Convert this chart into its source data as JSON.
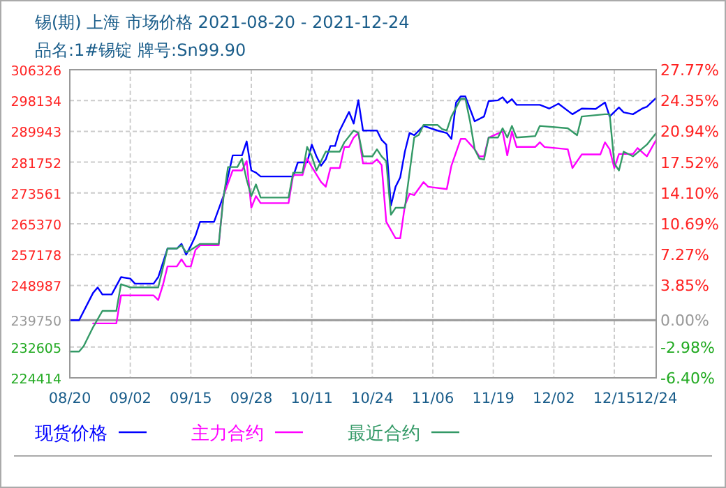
{
  "chart_data": {
    "type": "line",
    "title": "锡(期) 上海 市场价格 2021-08-20 - 2021-12-24",
    "subtitle": "品名:1#锡锭 牌号:Sn99.90",
    "xlim": [
      "2021-08-20",
      "2021-12-24"
    ],
    "xticks": [
      {
        "value": "2021-08-20",
        "label": "08/20"
      },
      {
        "value": "2021-09-02",
        "label": "09/02"
      },
      {
        "value": "2021-09-15",
        "label": "09/15"
      },
      {
        "value": "2021-09-28",
        "label": "09/28"
      },
      {
        "value": "2021-10-11",
        "label": "10/11"
      },
      {
        "value": "2021-10-24",
        "label": "10/24"
      },
      {
        "value": "2021-11-06",
        "label": "11/06"
      },
      {
        "value": "2021-11-19",
        "label": "11/19"
      },
      {
        "value": "2021-12-02",
        "label": "12/02"
      },
      {
        "value": "2021-12-15",
        "label": "12/15"
      },
      {
        "value": "2021-12-24",
        "label": "12/24"
      }
    ],
    "ylim": [
      224414,
      306326
    ],
    "yticks": [
      224414,
      232605,
      239750,
      248987,
      257178,
      265370,
      273561,
      281752,
      289943,
      298134,
      306326
    ],
    "y2lim": [
      -6.4,
      27.77
    ],
    "y2ticks": [
      {
        "value": -6.4,
        "label": "-6.40%"
      },
      {
        "value": -2.98,
        "label": "-2.98%"
      },
      {
        "value": 0,
        "label": "0.00%"
      },
      {
        "value": 3.85,
        "label": "3.85%"
      },
      {
        "value": 7.27,
        "label": "7.27%"
      },
      {
        "value": 10.69,
        "label": "10.69%"
      },
      {
        "value": 14.1,
        "label": "14.10%"
      },
      {
        "value": 17.52,
        "label": "17.52%"
      },
      {
        "value": 20.94,
        "label": "20.94%"
      },
      {
        "value": 24.35,
        "label": "24.35%"
      },
      {
        "value": 27.77,
        "label": "27.77%"
      }
    ],
    "ref_lines": [
      {
        "axis": "y2",
        "value": 0,
        "color": "#999999"
      }
    ],
    "grid": true,
    "legend": "bottom",
    "series": [
      {
        "name": "现货价格",
        "color": "#0000ff",
        "x": [
          "2021-08-20",
          "2021-08-22",
          "2021-08-25",
          "2021-08-26",
          "2021-08-27",
          "2021-08-29",
          "2021-08-31",
          "2021-09-02",
          "2021-09-03",
          "2021-09-07",
          "2021-09-08",
          "2021-09-10",
          "2021-09-12",
          "2021-09-13",
          "2021-09-14",
          "2021-09-15",
          "2021-09-16",
          "2021-09-17",
          "2021-09-20",
          "2021-09-22",
          "2021-09-23",
          "2021-09-24",
          "2021-09-26",
          "2021-09-27",
          "2021-09-28",
          "2021-09-29",
          "2021-09-30",
          "2021-10-07",
          "2021-10-08",
          "2021-10-10",
          "2021-10-11",
          "2021-10-12",
          "2021-10-13",
          "2021-10-14",
          "2021-10-15",
          "2021-10-16",
          "2021-10-17",
          "2021-10-19",
          "2021-10-20",
          "2021-10-21",
          "2021-10-22",
          "2021-10-25",
          "2021-10-26",
          "2021-10-27",
          "2021-10-28",
          "2021-10-29",
          "2021-10-30",
          "2021-10-31",
          "2021-11-01",
          "2021-11-02",
          "2021-11-04",
          "2021-11-07",
          "2021-11-09",
          "2021-11-10",
          "2021-11-11",
          "2021-11-12",
          "2021-11-13",
          "2021-11-15",
          "2021-11-17",
          "2021-11-18",
          "2021-11-20",
          "2021-11-21",
          "2021-11-22",
          "2021-11-23",
          "2021-11-24",
          "2021-11-29",
          "2021-12-01",
          "2021-12-03",
          "2021-12-06",
          "2021-12-08",
          "2021-12-11",
          "2021-12-13",
          "2021-12-14",
          "2021-12-16",
          "2021-12-17",
          "2021-12-19",
          "2021-12-21",
          "2021-12-22",
          "2021-12-24"
        ],
        "values": [
          239750,
          239750,
          247000,
          248450,
          246580,
          246580,
          251180,
          250800,
          249460,
          249460,
          251180,
          258790,
          258790,
          260025,
          257150,
          259500,
          262150,
          265890,
          265890,
          272720,
          277950,
          283550,
          283550,
          287280,
          279550,
          278960,
          277950,
          277950,
          281680,
          281680,
          286420,
          283290,
          280820,
          282500,
          286050,
          286050,
          290160,
          295120,
          292000,
          298220,
          290160,
          290160,
          287660,
          286420,
          270220,
          275220,
          277690,
          284550,
          289520,
          288900,
          291390,
          290160,
          289500,
          287920,
          297620,
          299230,
          299230,
          292620,
          293880,
          297990,
          298200,
          299000,
          297500,
          298500,
          296990,
          296990,
          296000,
          297300,
          294490,
          296000,
          295900,
          297620,
          293880,
          296300,
          295000,
          294490,
          296000,
          296500,
          298860
        ]
      },
      {
        "name": "主力合约",
        "color": "#ff00ff",
        "x": [
          "2021-08-25",
          "2021-08-30",
          "2021-08-31",
          "2021-09-07",
          "2021-09-08",
          "2021-09-09",
          "2021-09-10",
          "2021-09-12",
          "2021-09-13",
          "2021-09-14",
          "2021-09-15",
          "2021-09-16",
          "2021-09-17",
          "2021-09-21",
          "2021-09-22",
          "2021-09-24",
          "2021-09-26",
          "2021-09-27",
          "2021-09-28",
          "2021-09-29",
          "2021-09-30",
          "2021-10-06",
          "2021-10-07",
          "2021-10-09",
          "2021-10-10",
          "2021-10-11",
          "2021-10-13",
          "2021-10-14",
          "2021-10-15",
          "2021-10-17",
          "2021-10-18",
          "2021-10-19",
          "2021-10-20",
          "2021-10-21",
          "2021-10-22",
          "2021-10-24",
          "2021-10-25",
          "2021-10-26",
          "2021-10-27",
          "2021-10-29",
          "2021-10-30",
          "2021-10-31",
          "2021-11-01",
          "2021-11-02",
          "2021-11-04",
          "2021-11-05",
          "2021-11-09",
          "2021-11-10",
          "2021-11-12",
          "2021-11-13",
          "2021-11-15",
          "2021-11-16",
          "2021-11-17",
          "2021-11-18",
          "2021-11-21",
          "2021-11-22",
          "2021-11-23",
          "2021-11-24",
          "2021-11-28",
          "2021-11-29",
          "2021-11-30",
          "2021-12-05",
          "2021-12-06",
          "2021-12-08",
          "2021-12-12",
          "2021-12-13",
          "2021-12-14",
          "2021-12-15",
          "2021-12-16",
          "2021-12-19",
          "2021-12-20",
          "2021-12-22",
          "2021-12-23",
          "2021-12-24"
        ],
        "values": [
          238900,
          238900,
          246330,
          246330,
          245090,
          249080,
          254050,
          254050,
          255920,
          254050,
          254050,
          258420,
          259650,
          259650,
          272720,
          279550,
          279550,
          282050,
          269620,
          272720,
          270850,
          270850,
          278320,
          278320,
          282690,
          280500,
          276450,
          275220,
          280190,
          280190,
          285790,
          285790,
          288290,
          289520,
          281420,
          281420,
          282500,
          281000,
          265890,
          261520,
          261520,
          270220,
          273350,
          273000,
          276450,
          275220,
          274590,
          280820,
          287920,
          287920,
          285170,
          283290,
          283290,
          288290,
          289900,
          283550,
          289900,
          285790,
          285790,
          287030,
          285790,
          285170,
          280190,
          283800,
          283800,
          287030,
          285170,
          280190,
          283920,
          283920,
          285500,
          283290,
          285500,
          287660
        ]
      },
      {
        "name": "最近合约",
        "color": "#339966",
        "x": [
          "2021-08-20",
          "2021-08-22",
          "2021-08-23",
          "2021-08-25",
          "2021-08-27",
          "2021-08-30",
          "2021-08-31",
          "2021-09-02",
          "2021-09-08",
          "2021-09-10",
          "2021-09-12",
          "2021-09-13",
          "2021-09-14",
          "2021-09-15",
          "2021-09-17",
          "2021-09-21",
          "2021-09-22",
          "2021-09-23",
          "2021-09-25",
          "2021-09-26",
          "2021-09-27",
          "2021-09-28",
          "2021-09-29",
          "2021-09-30",
          "2021-10-06",
          "2021-10-07",
          "2021-10-09",
          "2021-10-10",
          "2021-10-11",
          "2021-10-12",
          "2021-10-14",
          "2021-10-17",
          "2021-10-18",
          "2021-10-20",
          "2021-10-21",
          "2021-10-22",
          "2021-10-24",
          "2021-10-25",
          "2021-10-26",
          "2021-10-27",
          "2021-10-28",
          "2021-10-29",
          "2021-10-31",
          "2021-11-01",
          "2021-11-02",
          "2021-11-03",
          "2021-11-04",
          "2021-11-07",
          "2021-11-08",
          "2021-11-09",
          "2021-11-10",
          "2021-11-12",
          "2021-11-13",
          "2021-11-14",
          "2021-11-15",
          "2021-11-16",
          "2021-11-17",
          "2021-11-18",
          "2021-11-20",
          "2021-11-21",
          "2021-11-22",
          "2021-11-23",
          "2021-11-24",
          "2021-11-28",
          "2021-11-29",
          "2021-12-05",
          "2021-12-07",
          "2021-12-08",
          "2021-12-13",
          "2021-12-14",
          "2021-12-15",
          "2021-12-16",
          "2021-12-17",
          "2021-12-19",
          "2021-12-22",
          "2021-12-24"
        ],
        "values": [
          231400,
          231400,
          232900,
          237880,
          242210,
          242210,
          249310,
          248450,
          248450,
          258790,
          258790,
          259650,
          257800,
          258400,
          260025,
          260025,
          272090,
          280450,
          280450,
          282690,
          277090,
          272720,
          275840,
          272350,
          272350,
          278960,
          278960,
          285790,
          283290,
          279550,
          284550,
          284550,
          287030,
          290160,
          289520,
          283290,
          283290,
          285170,
          283290,
          282000,
          267760,
          269620,
          269620,
          278960,
          288290,
          289000,
          291650,
          291650,
          290540,
          290160,
          293880,
          298600,
          298600,
          292620,
          285170,
          282690,
          282430,
          288290,
          288290,
          290760,
          288290,
          291390,
          288290,
          288660,
          291390,
          290760,
          288890,
          293880,
          294490,
          294490,
          281420,
          279550,
          284550,
          283290,
          286420,
          289520
        ]
      }
    ]
  }
}
